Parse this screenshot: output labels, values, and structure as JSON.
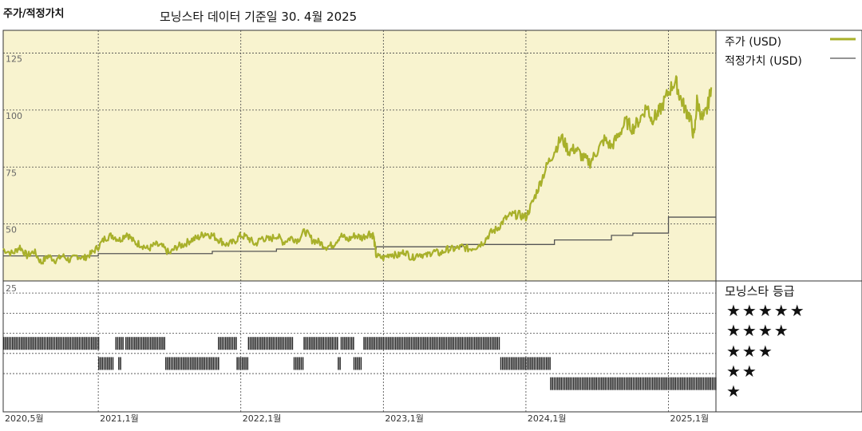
{
  "header": {
    "title": "주가/적정가치",
    "subtitle": "모닝스타 데이터 기준일 30. 4월 2025"
  },
  "legend": {
    "price_label": "주가 (USD)",
    "fair_label": "적정가치 (USD)"
  },
  "rating_legend": {
    "title": "모닝스타 등급",
    "rows": [
      "★★★★★",
      "★★★★",
      "★★★",
      "★★",
      "★"
    ]
  },
  "colors": {
    "price": "#a8b02a",
    "fair": "#555555",
    "plot_bg": "#f8f3cf",
    "rating_bar": "#222222"
  },
  "chart_data": {
    "type": "line",
    "ylabel": "",
    "y_ticks": [
      50,
      75,
      100,
      125
    ],
    "ylim": [
      25,
      135
    ],
    "rating_tick": "25",
    "x_ticks": [
      {
        "label": "2020,5월",
        "t": 2020.333
      },
      {
        "label": "2021,1월",
        "t": 2021.0
      },
      {
        "label": "2022,1월",
        "t": 2022.0
      },
      {
        "label": "2023,1월",
        "t": 2023.0
      },
      {
        "label": "2024,1월",
        "t": 2024.0
      },
      {
        "label": "2025,1월",
        "t": 2025.0
      }
    ],
    "xlim": [
      2020.333,
      2025.333
    ],
    "series": [
      {
        "name": "주가 (USD)",
        "points": [
          [
            2020.33,
            39
          ],
          [
            2020.4,
            37
          ],
          [
            2020.45,
            40
          ],
          [
            2020.5,
            36
          ],
          [
            2020.55,
            38
          ],
          [
            2020.6,
            33
          ],
          [
            2020.65,
            36
          ],
          [
            2020.7,
            34
          ],
          [
            2020.75,
            36
          ],
          [
            2020.8,
            34
          ],
          [
            2020.85,
            36
          ],
          [
            2020.9,
            35
          ],
          [
            2020.95,
            37
          ],
          [
            2021.0,
            40
          ],
          [
            2021.05,
            44
          ],
          [
            2021.1,
            45
          ],
          [
            2021.15,
            43
          ],
          [
            2021.2,
            46
          ],
          [
            2021.25,
            42
          ],
          [
            2021.3,
            41
          ],
          [
            2021.35,
            39
          ],
          [
            2021.4,
            41
          ],
          [
            2021.45,
            40
          ],
          [
            2021.5,
            37
          ],
          [
            2021.55,
            40
          ],
          [
            2021.6,
            41
          ],
          [
            2021.65,
            43
          ],
          [
            2021.7,
            44
          ],
          [
            2021.75,
            46
          ],
          [
            2021.8,
            45
          ],
          [
            2021.85,
            43
          ],
          [
            2021.9,
            41
          ],
          [
            2021.95,
            42
          ],
          [
            2022.0,
            45
          ],
          [
            2022.05,
            44
          ],
          [
            2022.1,
            41
          ],
          [
            2022.15,
            44
          ],
          [
            2022.2,
            43
          ],
          [
            2022.25,
            45
          ],
          [
            2022.3,
            42
          ],
          [
            2022.35,
            44
          ],
          [
            2022.4,
            43
          ],
          [
            2022.45,
            47
          ],
          [
            2022.5,
            43
          ],
          [
            2022.55,
            42
          ],
          [
            2022.6,
            40
          ],
          [
            2022.65,
            41
          ],
          [
            2022.7,
            45
          ],
          [
            2022.75,
            43
          ],
          [
            2022.8,
            45
          ],
          [
            2022.85,
            44
          ],
          [
            2022.9,
            46
          ],
          [
            2022.93,
            45
          ],
          [
            2022.95,
            36
          ],
          [
            2023.0,
            35
          ],
          [
            2023.05,
            37
          ],
          [
            2023.1,
            36
          ],
          [
            2023.15,
            38
          ],
          [
            2023.2,
            35
          ],
          [
            2023.25,
            37
          ],
          [
            2023.3,
            36
          ],
          [
            2023.35,
            38
          ],
          [
            2023.4,
            37
          ],
          [
            2023.45,
            39
          ],
          [
            2023.5,
            39
          ],
          [
            2023.55,
            40
          ],
          [
            2023.6,
            39
          ],
          [
            2023.65,
            40
          ],
          [
            2023.7,
            42
          ],
          [
            2023.75,
            46
          ],
          [
            2023.8,
            48
          ],
          [
            2023.85,
            52
          ],
          [
            2023.9,
            54
          ],
          [
            2023.95,
            54
          ],
          [
            2024.0,
            53
          ],
          [
            2024.05,
            60
          ],
          [
            2024.1,
            68
          ],
          [
            2024.15,
            76
          ],
          [
            2024.2,
            82
          ],
          [
            2024.25,
            88
          ],
          [
            2024.3,
            82
          ],
          [
            2024.35,
            83
          ],
          [
            2024.4,
            79
          ],
          [
            2024.45,
            77
          ],
          [
            2024.5,
            82
          ],
          [
            2024.55,
            87
          ],
          [
            2024.6,
            84
          ],
          [
            2024.65,
            89
          ],
          [
            2024.7,
            95
          ],
          [
            2024.75,
            92
          ],
          [
            2024.8,
            96
          ],
          [
            2024.85,
            102
          ],
          [
            2024.88,
            96
          ],
          [
            2024.92,
            98
          ],
          [
            2024.95,
            101
          ],
          [
            2025.0,
            108
          ],
          [
            2025.05,
            113
          ],
          [
            2025.08,
            106
          ],
          [
            2025.12,
            100
          ],
          [
            2025.15,
            97
          ],
          [
            2025.18,
            88
          ],
          [
            2025.2,
            104
          ],
          [
            2025.24,
            96
          ],
          [
            2025.27,
            100
          ],
          [
            2025.3,
            110
          ]
        ]
      },
      {
        "name": "적정가치 (USD)",
        "steps": [
          [
            2020.33,
            36
          ],
          [
            2021.0,
            37
          ],
          [
            2021.35,
            37
          ],
          [
            2021.8,
            38
          ],
          [
            2022.25,
            39
          ],
          [
            2022.6,
            39
          ],
          [
            2022.95,
            40
          ],
          [
            2023.25,
            40
          ],
          [
            2023.55,
            41
          ],
          [
            2023.8,
            41
          ],
          [
            2024.2,
            43
          ],
          [
            2024.6,
            45
          ],
          [
            2024.75,
            46
          ],
          [
            2025.0,
            53
          ],
          [
            2025.33,
            53
          ]
        ]
      }
    ],
    "ratings": {
      "rows": [
        "★★★★★",
        "★★★★",
        "★★★",
        "★★",
        "★"
      ],
      "segments": [
        {
          "stars": 3,
          "from": 2020.333,
          "to": 2021.0
        },
        {
          "stars": 2,
          "from": 2021.0,
          "to": 2021.1
        },
        {
          "stars": 2,
          "from": 2021.14,
          "to": 2021.16
        },
        {
          "stars": 3,
          "from": 2021.12,
          "to": 2021.17
        },
        {
          "stars": 3,
          "from": 2021.19,
          "to": 2021.47
        },
        {
          "stars": 2,
          "from": 2021.47,
          "to": 2021.84
        },
        {
          "stars": 3,
          "from": 2021.84,
          "to": 2021.97
        },
        {
          "stars": 2,
          "from": 2021.97,
          "to": 2022.05
        },
        {
          "stars": 3,
          "from": 2022.05,
          "to": 2022.37
        },
        {
          "stars": 2,
          "from": 2022.37,
          "to": 2022.44
        },
        {
          "stars": 3,
          "from": 2022.44,
          "to": 2022.68
        },
        {
          "stars": 2,
          "from": 2022.68,
          "to": 2022.7
        },
        {
          "stars": 3,
          "from": 2022.7,
          "to": 2022.79
        },
        {
          "stars": 2,
          "from": 2022.79,
          "to": 2022.85
        },
        {
          "stars": 3,
          "from": 2022.86,
          "to": 2023.82
        },
        {
          "stars": 2,
          "from": 2023.82,
          "to": 2024.17
        },
        {
          "stars": 1,
          "from": 2024.17,
          "to": 2025.33
        }
      ]
    }
  }
}
